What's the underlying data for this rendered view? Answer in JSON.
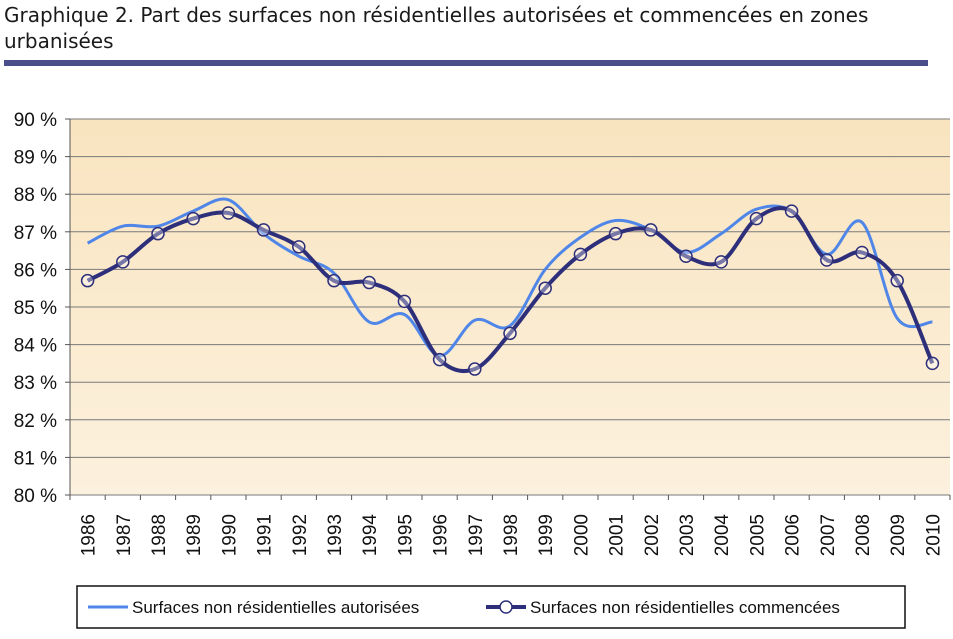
{
  "chart_data": {
    "type": "line",
    "title": "Graphique 2. Part des surfaces non résidentielles autorisées et commencées en zones urbanisées",
    "xlabel": "",
    "ylabel": "",
    "ylim": [
      80,
      90
    ],
    "y_ticks": [
      80,
      81,
      82,
      83,
      84,
      85,
      86,
      87,
      88,
      89,
      90
    ],
    "y_tick_labels": [
      "80 %",
      "81 %",
      "82 %",
      "83 %",
      "84 %",
      "85 %",
      "86 %",
      "87 %",
      "88 %",
      "89 %",
      "90 %"
    ],
    "x": [
      "1986",
      "1987",
      "1988",
      "1989",
      "1990",
      "1991",
      "1992",
      "1993",
      "1994",
      "1995",
      "1996",
      "1997",
      "1998",
      "1999",
      "2000",
      "2001",
      "2002",
      "2003",
      "2004",
      "2005",
      "2006",
      "2007",
      "2008",
      "2009",
      "2010"
    ],
    "grid": true,
    "legend_position": "bottom",
    "series": [
      {
        "name": "Surfaces non résidentielles autorisées",
        "color": "#4f86e8",
        "marker": "none",
        "values": [
          86.7,
          87.15,
          87.15,
          87.55,
          87.85,
          86.95,
          86.35,
          85.9,
          84.6,
          84.8,
          83.7,
          84.65,
          84.5,
          86.0,
          86.85,
          87.3,
          87.05,
          86.45,
          86.95,
          87.6,
          87.55,
          86.4,
          87.25,
          84.7,
          84.6
        ]
      },
      {
        "name": "Surfaces non résidentielles commencées",
        "color": "#2e2f7a",
        "marker": "circle",
        "values": [
          85.7,
          86.2,
          86.95,
          87.35,
          87.5,
          87.05,
          86.6,
          85.7,
          85.65,
          85.15,
          83.6,
          83.35,
          84.3,
          85.5,
          86.4,
          86.95,
          87.05,
          86.35,
          86.2,
          87.35,
          87.55,
          86.25,
          86.45,
          85.7,
          83.5
        ]
      }
    ]
  }
}
